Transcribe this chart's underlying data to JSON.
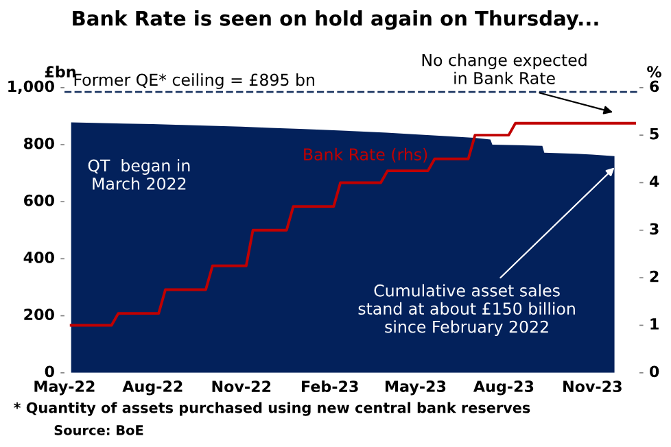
{
  "chart_data": {
    "type": "area",
    "title": "Bank Rate is seen on hold again on Thursday...",
    "ylabel": "£bn",
    "y2label": "%",
    "xlim": [
      "2022-05-01",
      "2023-12-20"
    ],
    "xticks": [
      {
        "value": "2022-05-01",
        "label": "May-22"
      },
      {
        "value": "2022-08-01",
        "label": "Aug-22"
      },
      {
        "value": "2022-11-01",
        "label": "Nov-22"
      },
      {
        "value": "2023-02-01",
        "label": "Feb-23"
      },
      {
        "value": "2023-05-01",
        "label": "May-23"
      },
      {
        "value": "2023-08-01",
        "label": "Aug-23"
      },
      {
        "value": "2023-11-01",
        "label": "Nov-23"
      }
    ],
    "ylim": [
      0,
      1000
    ],
    "yticks": [
      0,
      200,
      400,
      600,
      800,
      {
        "value": 1000,
        "label": "1,000"
      }
    ],
    "y2lim": [
      0,
      6
    ],
    "y2ticks": [
      0,
      1,
      2,
      3,
      4,
      5,
      6
    ],
    "grid": false,
    "legend": false,
    "series": [
      {
        "color": "#03215b",
        "x": [
          "2022-05-08",
          "2022-06-01",
          "2022-07-01",
          "2022-08-01",
          "2022-09-01",
          "2022-10-01",
          "2022-11-01",
          "2022-12-01",
          "2023-01-01",
          "2023-02-01",
          "2023-03-01",
          "2023-04-01",
          "2023-05-01",
          "2023-06-01",
          "2023-07-01",
          "2023-07-18",
          "2023-07-20",
          "2023-08-15",
          "2023-09-10",
          "2023-09-12",
          "2023-10-15",
          "2023-11-01",
          "2023-11-24"
        ],
        "values": [
          878,
          876,
          874,
          872,
          869,
          866,
          863,
          859,
          855,
          851,
          847,
          842,
          836,
          830,
          824,
          818,
          800,
          798,
          796,
          772,
          768,
          765,
          760
        ]
      },
      {
        "type": "line",
        "name": "Bank Rate (rhs)",
        "axis": "y2",
        "color": "#c00000",
        "x": [
          "2022-05-08",
          "2022-06-19",
          "2022-06-26",
          "2022-08-07",
          "2022-08-14",
          "2022-09-25",
          "2022-10-02",
          "2022-11-06",
          "2022-11-13",
          "2022-12-18",
          "2022-12-25",
          "2023-02-05",
          "2023-02-12",
          "2023-03-26",
          "2023-04-02",
          "2023-05-14",
          "2023-05-21",
          "2023-06-25",
          "2023-07-02",
          "2023-08-06",
          "2023-08-13",
          "2023-12-15"
        ],
        "values": [
          1.0,
          1.0,
          1.25,
          1.25,
          1.75,
          1.75,
          2.25,
          2.25,
          3.0,
          3.0,
          3.5,
          3.5,
          4.0,
          4.0,
          4.25,
          4.25,
          4.5,
          4.5,
          5.0,
          5.0,
          5.25,
          5.25
        ]
      }
    ],
    "ref_lines": [
      {
        "axis": "y",
        "value": 985,
        "color": "#1f3864",
        "line_style": "dashed"
      }
    ],
    "annotations": [
      "QT  began in\nMarch 2022",
      {
        "text": "Cumulative asset sales\nstand at about £150 billion\nsince February 2022",
        "x": "2023-11-24",
        "y": 720
      },
      "No change expected\nin Bank Rate",
      "* Quantity of assets purchased using new central bank reserves",
      "Source: BoE",
      "Former QE* ceiling = £895 bn"
    ]
  }
}
